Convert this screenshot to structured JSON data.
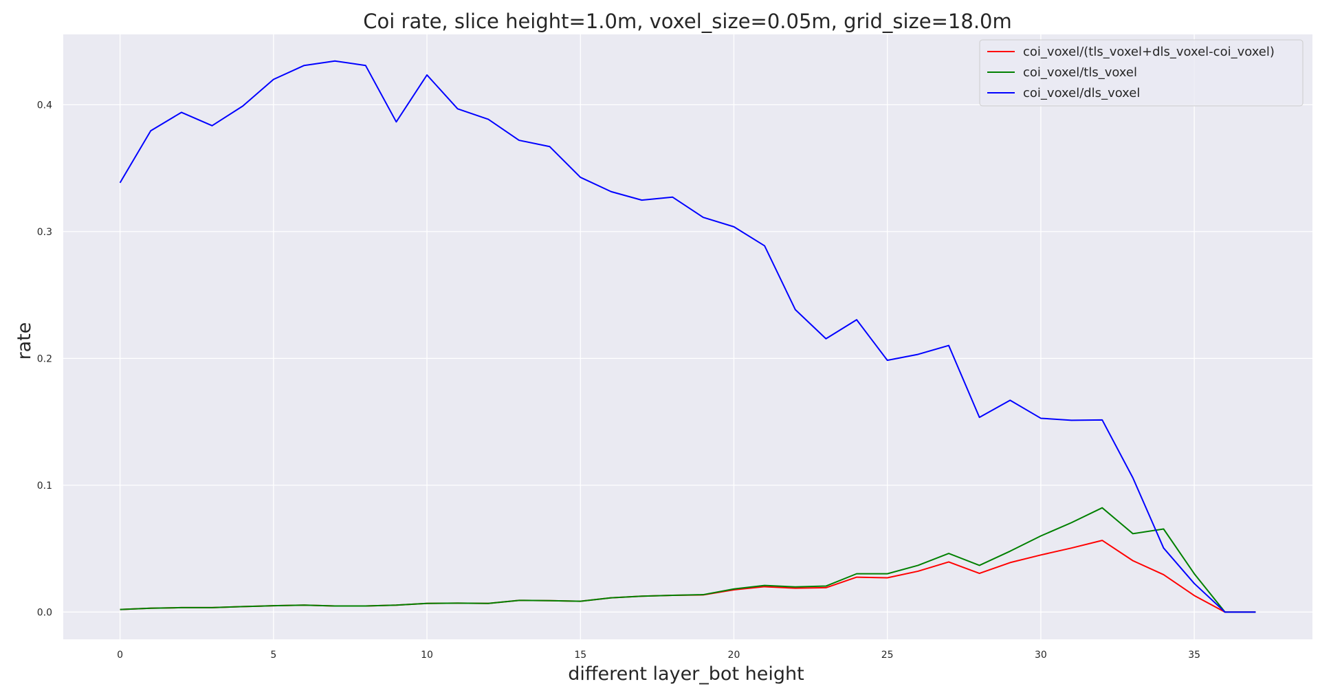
{
  "chart_data": {
    "type": "line",
    "title": "Coi rate, slice height=1.0m, voxel_size=0.05m, grid_size=18.0m",
    "xlabel": "different layer_bot height",
    "ylabel": "rate",
    "xlim": [
      -1.85,
      38.85
    ],
    "ylim": [
      -0.0215,
      0.4555
    ],
    "xticks": [
      0,
      5,
      10,
      15,
      20,
      25,
      30,
      35
    ],
    "yticks": [
      0.0,
      0.1,
      0.2,
      0.3,
      0.4
    ],
    "ytick_labels": [
      "0.0",
      "0.1",
      "0.2",
      "0.3",
      "0.4"
    ],
    "grid": true,
    "background": "#eaeaf2",
    "legend_position": "top-right",
    "x": [
      0,
      1,
      2,
      3,
      4,
      5,
      6,
      7,
      8,
      9,
      10,
      11,
      12,
      13,
      14,
      15,
      16,
      17,
      18,
      19,
      20,
      21,
      22,
      23,
      24,
      25,
      26,
      27,
      28,
      29,
      30,
      31,
      32,
      33,
      34,
      35,
      36,
      37
    ],
    "series": [
      {
        "name": "coi_voxel/(tls_voxel+dls_voxel-coi_voxel)",
        "color": "#ff0000",
        "values": [
          0.002,
          0.003,
          0.0035,
          0.0035,
          0.0043,
          0.005,
          0.0055,
          0.0048,
          0.0048,
          0.0055,
          0.0068,
          0.007,
          0.0068,
          0.0092,
          0.009,
          0.0085,
          0.0112,
          0.0125,
          0.0132,
          0.0135,
          0.0175,
          0.02,
          0.0188,
          0.0192,
          0.0275,
          0.027,
          0.0322,
          0.0395,
          0.0305,
          0.039,
          0.045,
          0.0505,
          0.0565,
          0.0405,
          0.0295,
          0.013,
          0.0,
          0.0
        ]
      },
      {
        "name": "coi_voxel/tls_voxel",
        "color": "#008000",
        "values": [
          0.002,
          0.003,
          0.0035,
          0.0035,
          0.0043,
          0.005,
          0.0055,
          0.0048,
          0.0048,
          0.0055,
          0.0068,
          0.007,
          0.0068,
          0.0092,
          0.009,
          0.0085,
          0.0112,
          0.0125,
          0.0132,
          0.0137,
          0.0182,
          0.021,
          0.0198,
          0.0205,
          0.0302,
          0.0302,
          0.0368,
          0.0462,
          0.0368,
          0.048,
          0.06,
          0.0705,
          0.0822,
          0.0618,
          0.0655,
          0.0302,
          0.0,
          0.0
        ]
      },
      {
        "name": "coi_voxel/dls_voxel",
        "color": "#0000ff",
        "values": [
          0.3385,
          0.3795,
          0.394,
          0.3835,
          0.399,
          0.42,
          0.431,
          0.4345,
          0.431,
          0.3865,
          0.4235,
          0.3968,
          0.3885,
          0.372,
          0.367,
          0.3428,
          0.3315,
          0.3248,
          0.3272,
          0.3112,
          0.3038,
          0.2888,
          0.2385,
          0.2155,
          0.2305,
          0.1985,
          0.2032,
          0.2102,
          0.1535,
          0.167,
          0.1528,
          0.1512,
          0.1515,
          0.1058,
          0.0505,
          0.0225,
          0.0,
          0.0
        ]
      }
    ]
  }
}
